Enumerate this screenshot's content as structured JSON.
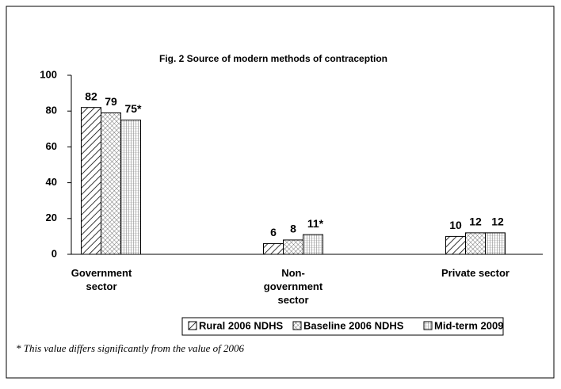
{
  "chart_data": {
    "type": "bar",
    "title": "Fig. 2    Source of modern methods of contraception",
    "categories": [
      "Government sector",
      "Non-government sector",
      "Private sector"
    ],
    "series": [
      {
        "name": "Rural 2006 NDHS",
        "color": "#000000",
        "hatch": "diagonal",
        "values": [
          82,
          6,
          10
        ]
      },
      {
        "name": "Baseline 2006 NDHS",
        "color": "#000000",
        "hatch": "crosshatch",
        "values": [
          79,
          8,
          12
        ]
      },
      {
        "name": "Mid-term 2009",
        "color": "#000000",
        "hatch": "grid",
        "values": [
          75,
          11,
          12
        ],
        "value_labels": [
          "75*",
          "11*",
          "12"
        ]
      }
    ],
    "ylim": [
      0,
      100
    ],
    "yticks": [
      0,
      20,
      40,
      60,
      80,
      100
    ],
    "grid": false,
    "legend": "bottom",
    "note": "* This value differs significantly from the value of 2006"
  }
}
